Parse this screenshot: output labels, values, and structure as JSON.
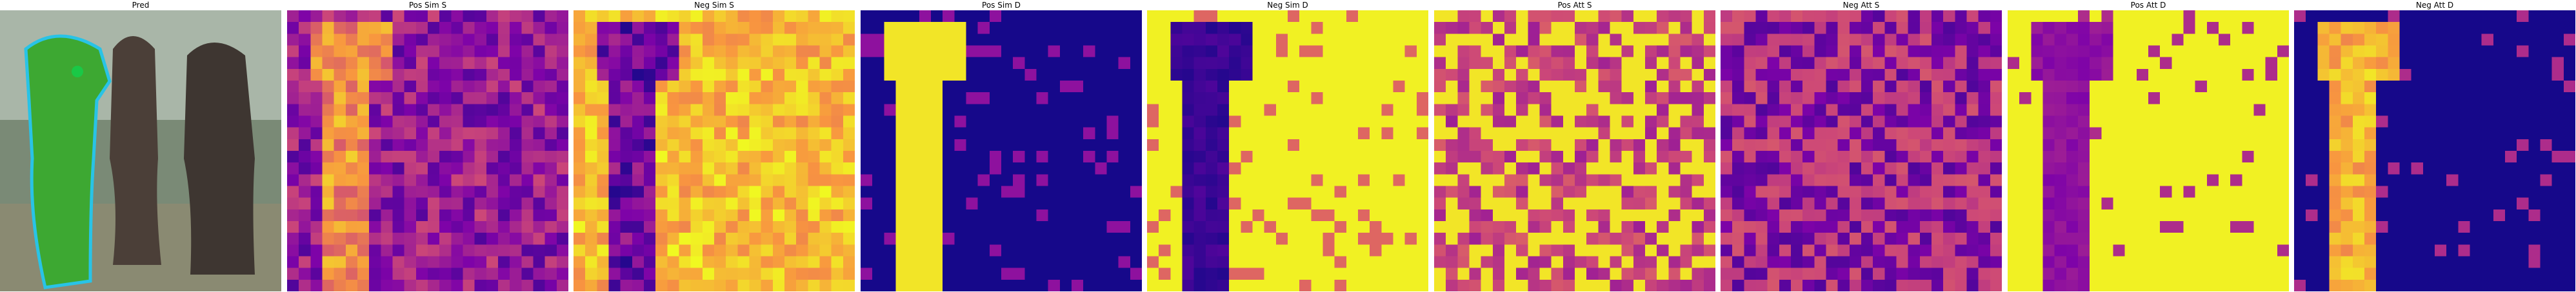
{
  "panels": [
    {
      "id": "pred",
      "title": "Pred"
    },
    {
      "id": "pos_sim_s",
      "title": "Pos Sim S"
    },
    {
      "id": "neg_sim_s",
      "title": "Neg Sim S"
    },
    {
      "id": "pos_sim_d",
      "title": "Pos Sim D"
    },
    {
      "id": "neg_sim_d",
      "title": "Neg Sim D"
    },
    {
      "id": "pos_att_s",
      "title": "Pos Att S"
    },
    {
      "id": "neg_att_s",
      "title": "Neg Att S"
    },
    {
      "id": "pos_att_d",
      "title": "Pos Att D"
    },
    {
      "id": "neg_att_d",
      "title": "Neg Att D"
    }
  ],
  "colors": {
    "plasma_low": "#0d0887",
    "plasma_mid": "#cc4778",
    "plasma_high": "#f0f921",
    "mask_fill": "#3da832",
    "mask_outline": "#29c3e6"
  }
}
